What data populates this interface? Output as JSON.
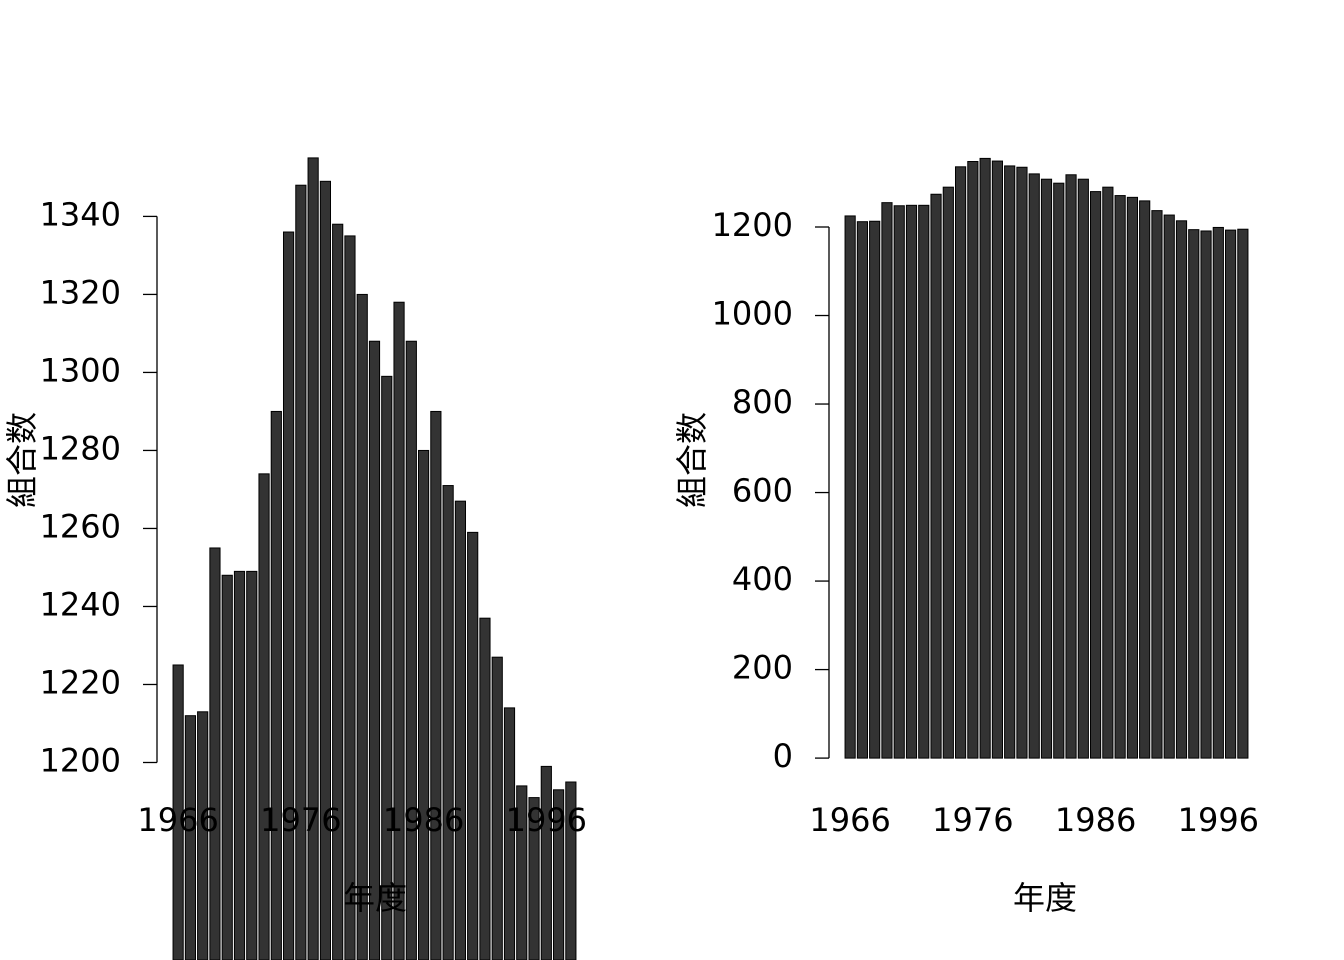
{
  "chart_data": [
    {
      "type": "bar",
      "xlabel": "年度",
      "ylabel": "組合数",
      "color": "#333333",
      "categories": [
        "1966",
        null,
        null,
        null,
        null,
        null,
        null,
        null,
        null,
        null,
        "1976",
        null,
        null,
        null,
        null,
        null,
        null,
        null,
        null,
        null,
        "1986",
        null,
        null,
        null,
        null,
        null,
        null,
        null,
        null,
        null,
        "1996",
        null,
        null
      ],
      "values": [
        1225,
        1212,
        1213,
        1255,
        1248,
        1249,
        1249,
        1274,
        1290,
        1336,
        1348,
        1355,
        1349,
        1338,
        1335,
        1320,
        1308,
        1299,
        1318,
        1308,
        1280,
        1290,
        1271,
        1267,
        1259,
        1237,
        1227,
        1214,
        1194,
        1191,
        1199,
        1193,
        1195
      ],
      "ylim": [
        1195,
        1361
      ],
      "yticks": [
        1200,
        1220,
        1240,
        1260,
        1280,
        1300,
        1320,
        1340
      ]
    },
    {
      "type": "bar",
      "xlabel": "年度",
      "ylabel": "組合数",
      "color": "#333333",
      "categories": [
        "1966",
        null,
        null,
        null,
        null,
        null,
        null,
        null,
        null,
        null,
        "1976",
        null,
        null,
        null,
        null,
        null,
        null,
        null,
        null,
        null,
        "1986",
        null,
        null,
        null,
        null,
        null,
        null,
        null,
        null,
        null,
        "1996",
        null,
        null
      ],
      "values": [
        1225,
        1212,
        1213,
        1255,
        1248,
        1249,
        1249,
        1274,
        1290,
        1336,
        1348,
        1355,
        1349,
        1338,
        1335,
        1320,
        1308,
        1299,
        1318,
        1308,
        1280,
        1290,
        1271,
        1267,
        1259,
        1237,
        1227,
        1214,
        1194,
        1191,
        1199,
        1193,
        1195
      ],
      "ylim": [
        -54,
        1409
      ],
      "yticks": [
        0,
        200,
        400,
        600,
        800,
        1000,
        1200
      ]
    }
  ]
}
